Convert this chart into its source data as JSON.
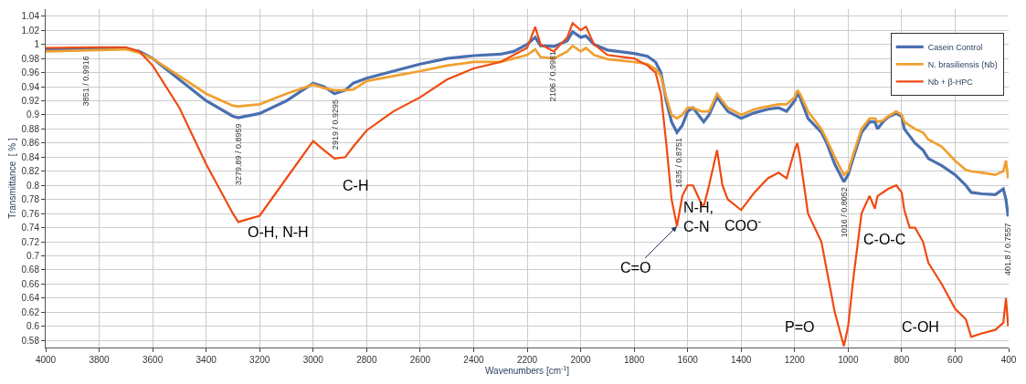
{
  "chart_data": {
    "type": "line",
    "xlabel": "Wavenumbers [cm$^{-1}$]",
    "ylabel": "Transmittance  [ % ]",
    "xlim": [
      4000,
      400
    ],
    "xticks": [
      4000,
      3800,
      3600,
      3400,
      3200,
      3000,
      2800,
      2600,
      2400,
      2200,
      2000,
      1800,
      1600,
      1400,
      1200,
      1000,
      800,
      600,
      400
    ],
    "ylim": [
      0.57,
      1.05
    ],
    "yticks": [
      0.58,
      0.6,
      0.62,
      0.64,
      0.66,
      0.68,
      0.7,
      0.72,
      0.74,
      0.76,
      0.78,
      0.8,
      0.82,
      0.84,
      0.86,
      0.88,
      0.9,
      0.92,
      0.94,
      0.96,
      0.98,
      1,
      1.02,
      1.04
    ],
    "grid": true,
    "legend": "top right",
    "marker": "none",
    "line_style": "solid",
    "x": [
      4000,
      3800,
      3700,
      3650,
      3600,
      3500,
      3400,
      3300,
      3280,
      3200,
      3100,
      3000,
      2960,
      2920,
      2880,
      2850,
      2800,
      2700,
      2600,
      2500,
      2400,
      2300,
      2250,
      2200,
      2170,
      2150,
      2100,
      2050,
      2030,
      2000,
      1980,
      1950,
      1900,
      1800,
      1750,
      1720,
      1700,
      1680,
      1660,
      1640,
      1620,
      1600,
      1580,
      1550,
      1540,
      1520,
      1490,
      1470,
      1450,
      1400,
      1350,
      1300,
      1260,
      1230,
      1200,
      1190,
      1180,
      1150,
      1100,
      1080,
      1050,
      1016,
      1000,
      980,
      950,
      920,
      900,
      890,
      870,
      850,
      820,
      800,
      790,
      770,
      750,
      720,
      700,
      650,
      600,
      560,
      540,
      500,
      450,
      420,
      410,
      401.8
    ],
    "series": [
      {
        "name": "Casein Control",
        "color": "#4a6fb0",
        "values": [
          0.993,
          0.995,
          0.994,
          0.99,
          0.98,
          0.95,
          0.92,
          0.898,
          0.896,
          0.902,
          0.92,
          0.945,
          0.94,
          0.93,
          0.935,
          0.945,
          0.952,
          0.962,
          0.972,
          0.98,
          0.984,
          0.986,
          0.99,
          1.0,
          1.01,
          0.998,
          0.997,
          1.005,
          1.018,
          1.01,
          1.012,
          1.0,
          0.992,
          0.987,
          0.983,
          0.975,
          0.96,
          0.92,
          0.89,
          0.875,
          0.885,
          0.905,
          0.91,
          0.895,
          0.89,
          0.9,
          0.925,
          0.915,
          0.905,
          0.895,
          0.903,
          0.908,
          0.91,
          0.905,
          0.92,
          0.93,
          0.925,
          0.895,
          0.875,
          0.86,
          0.83,
          0.805,
          0.815,
          0.84,
          0.875,
          0.89,
          0.89,
          0.88,
          0.89,
          0.897,
          0.902,
          0.898,
          0.88,
          0.87,
          0.86,
          0.85,
          0.838,
          0.828,
          0.815,
          0.8,
          0.79,
          0.788,
          0.787,
          0.795,
          0.78,
          0.756
        ]
      },
      {
        "name": "N. brasiliensis (Nb)",
        "color": "#f0a030",
        "values": [
          0.99,
          0.992,
          0.993,
          0.988,
          0.98,
          0.955,
          0.93,
          0.913,
          0.912,
          0.915,
          0.93,
          0.943,
          0.938,
          0.935,
          0.935,
          0.936,
          0.948,
          0.955,
          0.962,
          0.97,
          0.975,
          0.975,
          0.98,
          0.985,
          0.993,
          0.982,
          0.98,
          0.99,
          0.998,
          0.99,
          0.995,
          0.985,
          0.979,
          0.975,
          0.972,
          0.965,
          0.955,
          0.925,
          0.9,
          0.895,
          0.9,
          0.91,
          0.91,
          0.905,
          0.905,
          0.905,
          0.93,
          0.92,
          0.91,
          0.9,
          0.908,
          0.912,
          0.915,
          0.915,
          0.925,
          0.935,
          0.93,
          0.905,
          0.88,
          0.865,
          0.84,
          0.815,
          0.82,
          0.845,
          0.88,
          0.895,
          0.895,
          0.89,
          0.892,
          0.898,
          0.905,
          0.9,
          0.89,
          0.885,
          0.88,
          0.875,
          0.865,
          0.855,
          0.835,
          0.822,
          0.82,
          0.818,
          0.815,
          0.82,
          0.835,
          0.81
        ]
      },
      {
        "name": "Nb + β-HPC",
        "color": "#f04a10",
        "values": [
          0.995,
          0.996,
          0.996,
          0.99,
          0.97,
          0.91,
          0.83,
          0.76,
          0.748,
          0.757,
          0.81,
          0.863,
          0.85,
          0.838,
          0.84,
          0.855,
          0.878,
          0.905,
          0.925,
          0.95,
          0.966,
          0.975,
          0.985,
          0.995,
          1.025,
          1.0,
          0.99,
          1.01,
          1.03,
          1.02,
          1.025,
          1.0,
          0.985,
          0.98,
          0.97,
          0.96,
          0.93,
          0.86,
          0.78,
          0.742,
          0.785,
          0.8,
          0.8,
          0.775,
          0.77,
          0.8,
          0.85,
          0.8,
          0.78,
          0.765,
          0.79,
          0.81,
          0.818,
          0.81,
          0.85,
          0.86,
          0.84,
          0.76,
          0.72,
          0.68,
          0.62,
          0.572,
          0.6,
          0.67,
          0.76,
          0.785,
          0.767,
          0.785,
          0.79,
          0.795,
          0.8,
          0.79,
          0.765,
          0.74,
          0.74,
          0.72,
          0.69,
          0.66,
          0.625,
          0.61,
          0.585,
          0.59,
          0.595,
          0.605,
          0.64,
          0.6
        ]
      }
    ],
    "annotations": [
      {
        "text": "3851 / 0.9916",
        "x": 3851,
        "y": 0.9916
      },
      {
        "text": "3279.89 / 0.8959",
        "x": 3279.89,
        "y": 0.8959
      },
      {
        "text": "2919 / 0.9295",
        "x": 2919,
        "y": 0.9295
      },
      {
        "text": "2106 / 0.9981",
        "x": 2106,
        "y": 0.9981
      },
      {
        "text": "1635 / 0.8751",
        "x": 1635,
        "y": 0.8751
      },
      {
        "text": "1016 / 0.8052",
        "x": 1016,
        "y": 0.8052
      },
      {
        "text": "401.8 / 0.7557",
        "x": 401.8,
        "y": 0.7557
      },
      "O-H, N-H",
      "C-H",
      {
        "text": "C=O",
        "x": 1640,
        "y": 0.742
      },
      "N-H,\nC-N",
      "COO$^{-}$",
      "P=O",
      "C-O-C",
      "C-OH"
    ]
  }
}
